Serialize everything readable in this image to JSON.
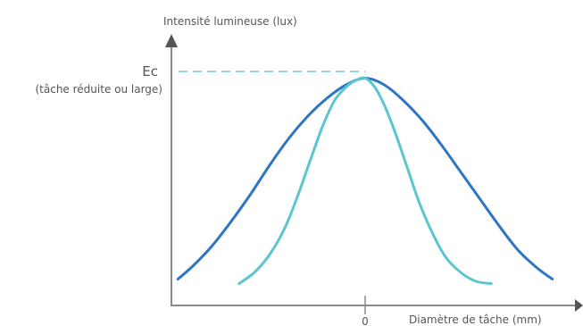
{
  "chart_data": {
    "type": "line",
    "ylabel": "Intensité lumineuse (lux)",
    "xlabel": "Diamètre de tâche (mm)",
    "x_tick_labels": [
      "0"
    ],
    "reference_label": "Ec",
    "reference_sublabel": "(tâche réduite ou large)",
    "reference_value": 1.0,
    "xlim": [
      -1,
      1
    ],
    "ylim": [
      0,
      1.0
    ],
    "series": [
      {
        "color": "#2e75c4",
        "x": [
          -0.98,
          -0.9,
          -0.8,
          -0.7,
          -0.6,
          -0.5,
          -0.4,
          -0.3,
          -0.2,
          -0.1,
          0.0,
          0.1,
          0.2,
          0.3,
          0.4,
          0.5,
          0.6,
          0.7,
          0.8,
          0.9,
          0.98
        ],
        "y": [
          0.07,
          0.13,
          0.22,
          0.33,
          0.45,
          0.58,
          0.7,
          0.8,
          0.88,
          0.94,
          0.97,
          0.94,
          0.87,
          0.78,
          0.67,
          0.55,
          0.43,
          0.31,
          0.2,
          0.12,
          0.07
        ]
      },
      {
        "color": "#5bc5d0",
        "x": [
          -0.66,
          -0.58,
          -0.5,
          -0.42,
          -0.35,
          -0.28,
          -0.22,
          -0.16,
          -0.1,
          -0.05,
          0.0,
          0.05,
          0.1,
          0.16,
          0.22,
          0.28,
          0.35,
          0.42,
          0.5,
          0.58,
          0.66
        ],
        "y": [
          0.05,
          0.1,
          0.18,
          0.3,
          0.45,
          0.62,
          0.76,
          0.87,
          0.93,
          0.96,
          0.97,
          0.93,
          0.85,
          0.72,
          0.57,
          0.42,
          0.28,
          0.17,
          0.1,
          0.06,
          0.05
        ]
      }
    ]
  }
}
